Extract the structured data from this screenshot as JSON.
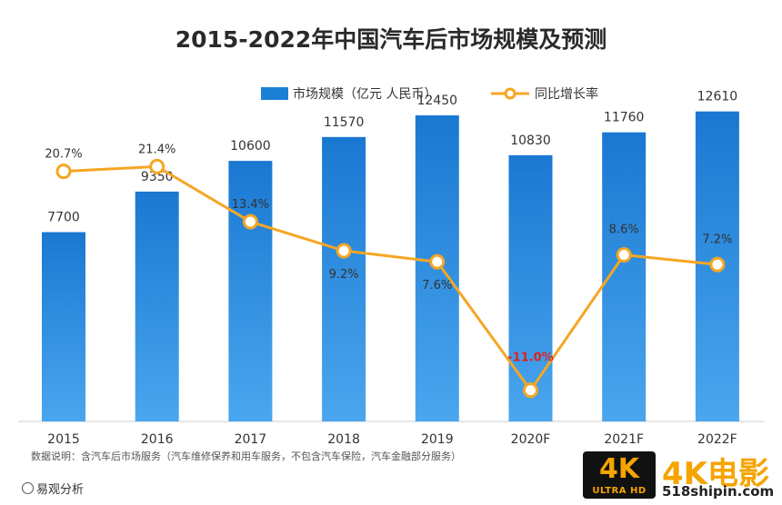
{
  "chart_data": {
    "type": "bar",
    "title": "2015-2022年中国汽车后市场规模及预测",
    "categories": [
      "2015",
      "2016",
      "2017",
      "2018",
      "2019",
      "2020F",
      "2021F",
      "2022F"
    ],
    "series": [
      {
        "name": "市场规模（亿元 人民币）",
        "type": "bar",
        "values": [
          7700,
          9350,
          10600,
          11570,
          12450,
          10830,
          11760,
          12610
        ],
        "labels": [
          "7700",
          "9350",
          "10600",
          "11570",
          "12450",
          "10830",
          "11760",
          "12610"
        ],
        "color": "#1c7fd6"
      },
      {
        "name": "同比增长率",
        "type": "line",
        "values": [
          20.7,
          21.4,
          13.4,
          9.2,
          7.6,
          -11.0,
          8.6,
          7.2
        ],
        "labels": [
          "20.7%",
          "21.4%",
          "13.4%",
          "9.2%",
          "7.6%",
          "-11.0%",
          "8.6%",
          "7.2%"
        ],
        "color": "#f5a623"
      }
    ],
    "bar_axis_range": [
      0,
      15000
    ],
    "line_axis_range": [
      -20,
      40
    ],
    "grid": false,
    "legend_position": "top"
  },
  "footnote": "数据说明：含汽车后市场服务（汽车维修保养和用车服务，不包含汽车保险，汽车金融部分服务）",
  "brand": "易观分析",
  "watermark": {
    "badge_main": "4K",
    "badge_sub": "ULTRA HD",
    "name": "4K电影",
    "url": "518shipin.com"
  }
}
